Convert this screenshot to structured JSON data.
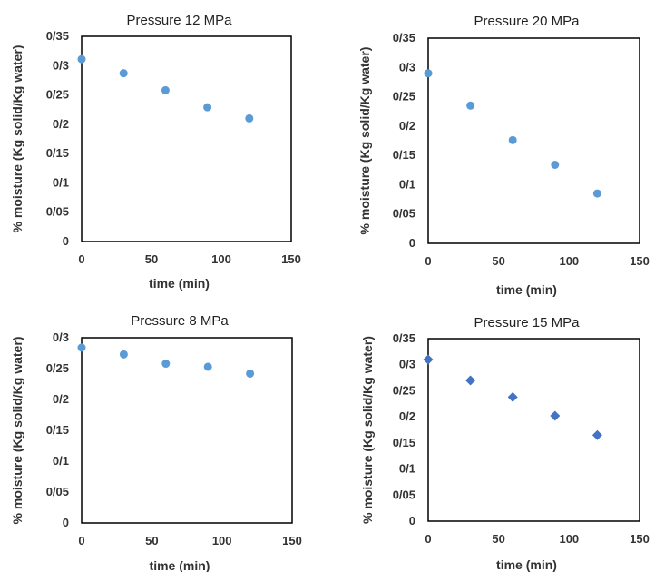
{
  "chart_data": [
    {
      "type": "scatter",
      "title": "Pressure 12 MPa",
      "xlabel": "time (min)",
      "ylabel": "% moisture (Kg solid/Kg water)",
      "x_ticks": [
        "0",
        "50",
        "100",
        "150"
      ],
      "y_ticks": [
        "0",
        "0/05",
        "0/1",
        "0/15",
        "0/2",
        "0/25",
        "0/3",
        "0/35"
      ],
      "xlim": [
        0,
        150
      ],
      "ylim": [
        0,
        0.35
      ],
      "marker": "circle",
      "color": "#5B9BD5",
      "grid": false,
      "series": [
        {
          "x": [
            0,
            30,
            60,
            90,
            120
          ],
          "y": [
            0.311,
            0.287,
            0.258,
            0.229,
            0.21
          ]
        }
      ]
    },
    {
      "type": "scatter",
      "title": "Pressure 20 MPa",
      "xlabel": "time (min)",
      "ylabel": "% moisture (Kg solid/Kg water)",
      "x_ticks": [
        "0",
        "50",
        "100",
        "150"
      ],
      "y_ticks": [
        "0",
        "0/05",
        "0/1",
        "0/15",
        "0/2",
        "0/25",
        "0/3",
        "0/35"
      ],
      "xlim": [
        0,
        150
      ],
      "ylim": [
        0,
        0.35
      ],
      "marker": "circle",
      "color": "#5B9BD5",
      "grid": false,
      "series": [
        {
          "x": [
            0,
            30,
            60,
            90,
            120
          ],
          "y": [
            0.29,
            0.235,
            0.176,
            0.134,
            0.085
          ]
        }
      ]
    },
    {
      "type": "scatter",
      "title": "Pressure 8 MPa",
      "xlabel": "time (min)",
      "ylabel": "% moisture (Kg solid/Kg water)",
      "x_ticks": [
        "0",
        "50",
        "100",
        "150"
      ],
      "y_ticks": [
        "0",
        "0/05",
        "0/1",
        "0/15",
        "0/2",
        "0/25",
        "0/3"
      ],
      "xlim": [
        0,
        150
      ],
      "ylim": [
        0,
        0.3
      ],
      "marker": "circle",
      "color": "#5B9BD5",
      "grid": false,
      "series": [
        {
          "x": [
            0,
            30,
            60,
            90,
            120
          ],
          "y": [
            0.284,
            0.273,
            0.258,
            0.253,
            0.242
          ]
        }
      ]
    },
    {
      "type": "scatter",
      "title": "Pressure 15 MPa",
      "xlabel": "time (min)",
      "ylabel": "% moisture (Kg solid/Kg water)",
      "x_ticks": [
        "0",
        "50",
        "100",
        "150"
      ],
      "y_ticks": [
        "0",
        "0/05",
        "0/1",
        "0/15",
        "0/2",
        "0/25",
        "0/3",
        "0/35"
      ],
      "xlim": [
        0,
        150
      ],
      "ylim": [
        0,
        0.35
      ],
      "marker": "diamond",
      "color": "#4472C4",
      "grid": false,
      "series": [
        {
          "x": [
            0,
            30,
            60,
            90,
            120
          ],
          "y": [
            0.31,
            0.27,
            0.238,
            0.202,
            0.165
          ]
        }
      ]
    }
  ]
}
